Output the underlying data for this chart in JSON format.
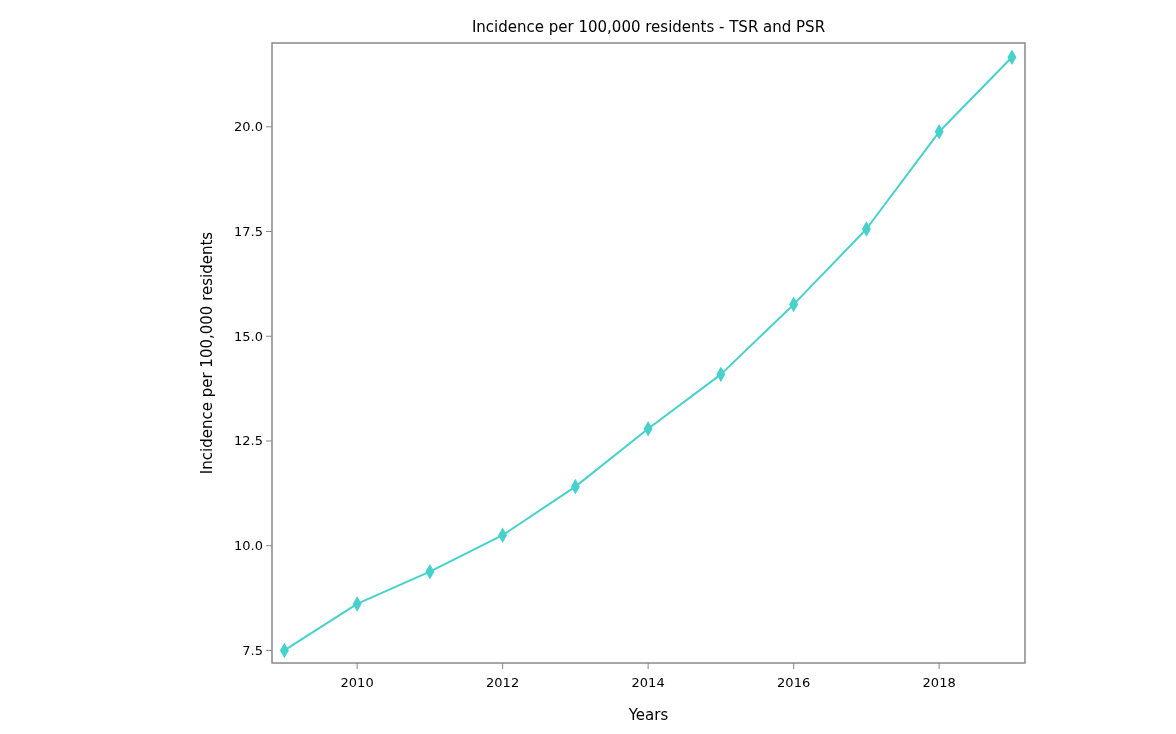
{
  "chart_data": {
    "type": "line",
    "title": "Incidence per 100,000 residents - TSR and PSR",
    "xlabel": "Years",
    "ylabel": "Incidence per 100,000 residents",
    "x": [
      2009,
      2010,
      2011,
      2012,
      2013,
      2014,
      2015,
      2016,
      2017,
      2018,
      2019
    ],
    "series": [
      {
        "color": "#48d1cc",
        "values": [
          7.5,
          8.61,
          9.38,
          10.25,
          11.41,
          12.79,
          14.09,
          15.76,
          17.56,
          19.88,
          21.66
        ]
      }
    ],
    "xlim": [
      2008.83,
      2019.18
    ],
    "xticks": [
      2010,
      2012,
      2014,
      2016,
      2018
    ],
    "ylim": [
      7.2,
      22
    ],
    "yticks": [
      {
        "value": 7.5,
        "label": "7.5"
      },
      {
        "value": 10,
        "label": "10.0"
      },
      {
        "value": 12.5,
        "label": "12.5"
      },
      {
        "value": 15,
        "label": "15.0"
      },
      {
        "value": 17.5,
        "label": "17.5"
      },
      {
        "value": 20,
        "label": "20.0"
      }
    ],
    "marker": "diamond",
    "line_style": "solid",
    "grid": false
  }
}
